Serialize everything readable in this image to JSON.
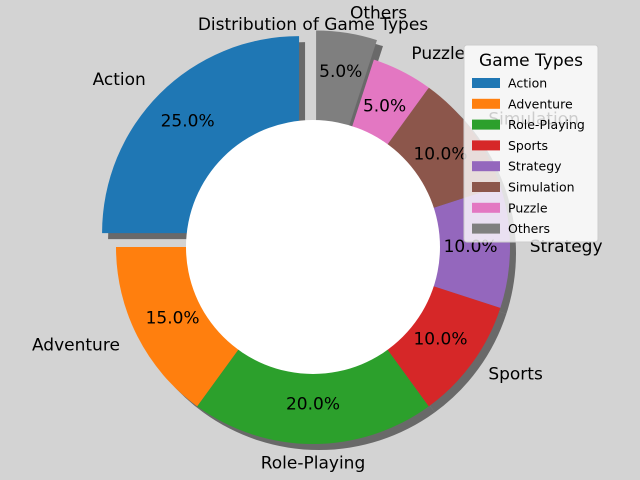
{
  "chart_data": {
    "type": "pie",
    "title": "Distribution of Game Types",
    "donut": true,
    "shadow": true,
    "start_angle_deg": 90,
    "direction": "counterclockwise",
    "legend_position": "top-right",
    "legend_title": "Game Types",
    "categories": [
      "Action",
      "Adventure",
      "Role-Playing",
      "Sports",
      "Strategy",
      "Simulation",
      "Puzzle",
      "Others"
    ],
    "values": [
      25,
      15,
      20,
      10,
      10,
      10,
      5,
      5
    ],
    "percent_labels": [
      "25.0%",
      "15.0%",
      "20.0%",
      "10.0%",
      "10.0%",
      "10.0%",
      "5.0%",
      "5.0%"
    ],
    "exploded": [
      true,
      false,
      false,
      false,
      false,
      false,
      false,
      true
    ],
    "colors": [
      "#1f77b4",
      "#ff7f0e",
      "#2ca02c",
      "#d62728",
      "#9467bd",
      "#8c564b",
      "#e377c2",
      "#7f7f7f"
    ]
  }
}
